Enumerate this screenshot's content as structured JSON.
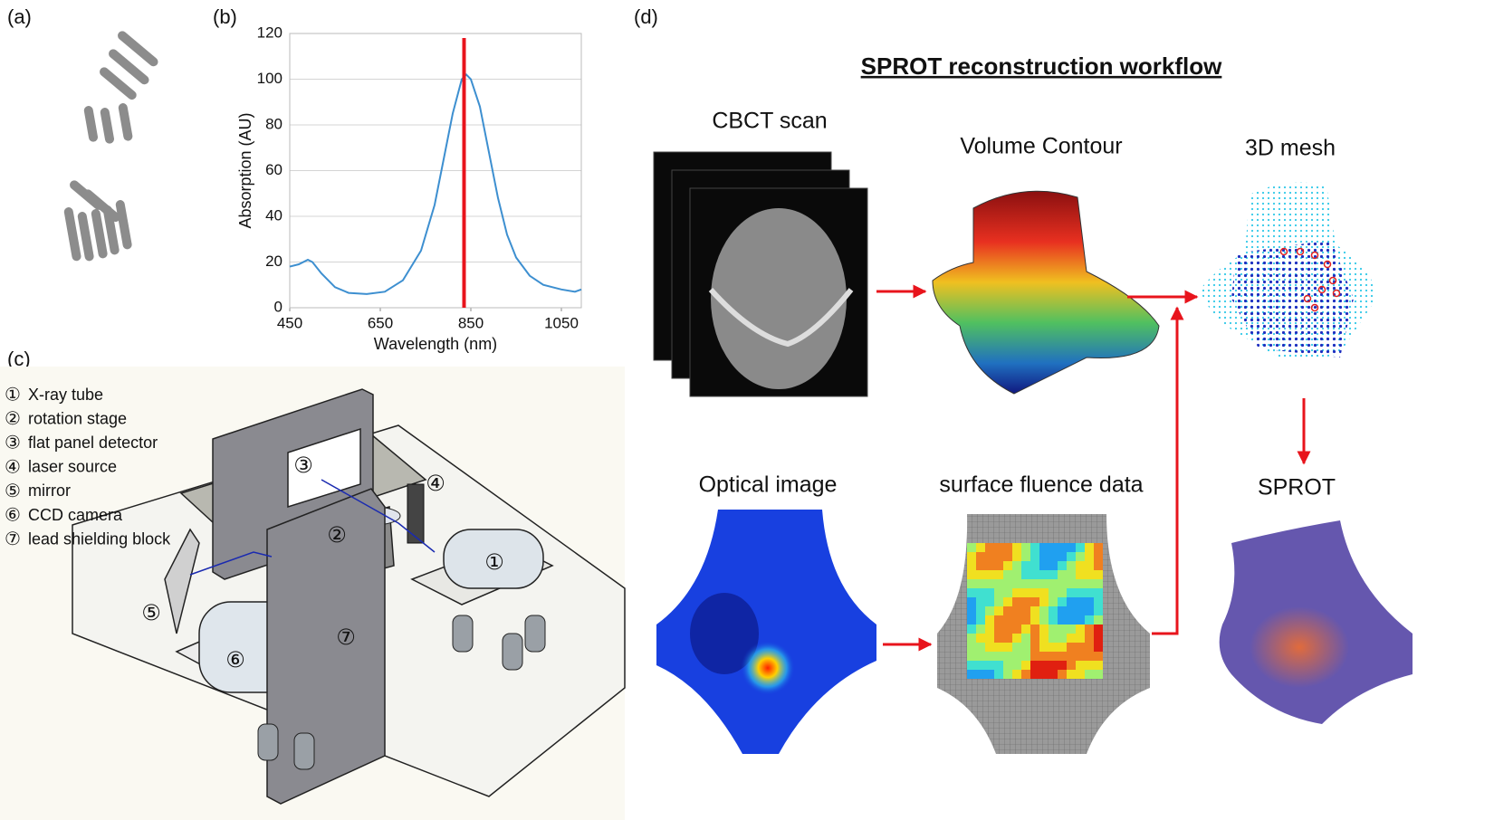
{
  "panels": {
    "a": "(a)",
    "b": "(b)",
    "c": "(c)",
    "d": "(d)"
  },
  "chart_data": {
    "type": "line",
    "xlabel": "Wavelength (nm)",
    "ylabel": "Absorption (AU)",
    "xlim": [
      450,
      1094
    ],
    "xticks": [
      450,
      650,
      850,
      1050
    ],
    "ylim": [
      0,
      120
    ],
    "yticks": [
      0,
      20,
      40,
      60,
      80,
      100,
      120
    ],
    "grid": true,
    "series": [
      {
        "color": "#3d8fd0",
        "x": [
          450,
          470,
          490,
          500,
          520,
          550,
          580,
          620,
          660,
          700,
          740,
          770,
          790,
          810,
          830,
          840,
          850,
          870,
          890,
          910,
          930,
          950,
          980,
          1010,
          1050,
          1080,
          1094
        ],
        "values": [
          18,
          19,
          21,
          20,
          15,
          9,
          6.5,
          6,
          7,
          12,
          25,
          45,
          65,
          85,
          100,
          102,
          100,
          88,
          68,
          48,
          32,
          22,
          14,
          10,
          8,
          7,
          8
        ]
      }
    ],
    "vline": {
      "x": 835,
      "color": "#e8141c"
    }
  },
  "setup": {
    "legend": [
      {
        "num": "①",
        "label": "X-ray tube"
      },
      {
        "num": "②",
        "label": "rotation stage"
      },
      {
        "num": "③",
        "label": "flat panel detector"
      },
      {
        "num": "④",
        "label": "laser source"
      },
      {
        "num": "⑤",
        "label": "mirror"
      },
      {
        "num": "⑥",
        "label": "CCD camera"
      },
      {
        "num": "⑦",
        "label": "lead shielding block"
      }
    ],
    "callouts": [
      "③",
      "④",
      "②",
      "①",
      "⑤",
      "⑥",
      "⑦"
    ]
  },
  "workflow": {
    "title": "SPROT reconstruction workflow",
    "steps": [
      "CBCT scan",
      "Volume Contour",
      "3D mesh",
      "Optical image",
      "surface fluence data",
      "SPROT"
    ]
  }
}
